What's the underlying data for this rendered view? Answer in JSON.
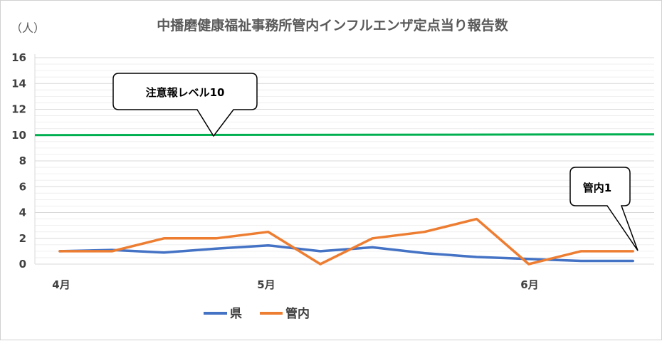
{
  "chart_data": {
    "type": "line",
    "title": "中播磨健康福祉事務所管内インフルエンザ定点当り報告数",
    "unit_label": "（人）",
    "ylim": [
      0,
      16
    ],
    "y_ticks": [
      "0",
      "2",
      "4",
      "6",
      "8",
      "10",
      "12",
      "14",
      "16"
    ],
    "x_tick_labels": [
      "4月",
      "5月",
      "6月"
    ],
    "x_points": 12,
    "grid": true,
    "legend_position": "bottom-left",
    "series": [
      {
        "name": "県",
        "color": "#4472C4",
        "values": [
          1.0,
          1.1,
          0.9,
          1.2,
          1.45,
          1.0,
          1.3,
          0.85,
          0.55,
          0.4,
          0.25,
          0.25
        ]
      },
      {
        "name": "管内",
        "color": "#ED7D31",
        "values": [
          1.0,
          1.0,
          2.0,
          2.0,
          2.5,
          0.0,
          2.0,
          2.5,
          3.5,
          0.0,
          1.0,
          1.0
        ]
      }
    ],
    "reference_line": {
      "value": 10,
      "color": "#00B050"
    },
    "annotations": [
      {
        "text": "注意報レベル10"
      },
      {
        "text": "管内1"
      }
    ]
  }
}
